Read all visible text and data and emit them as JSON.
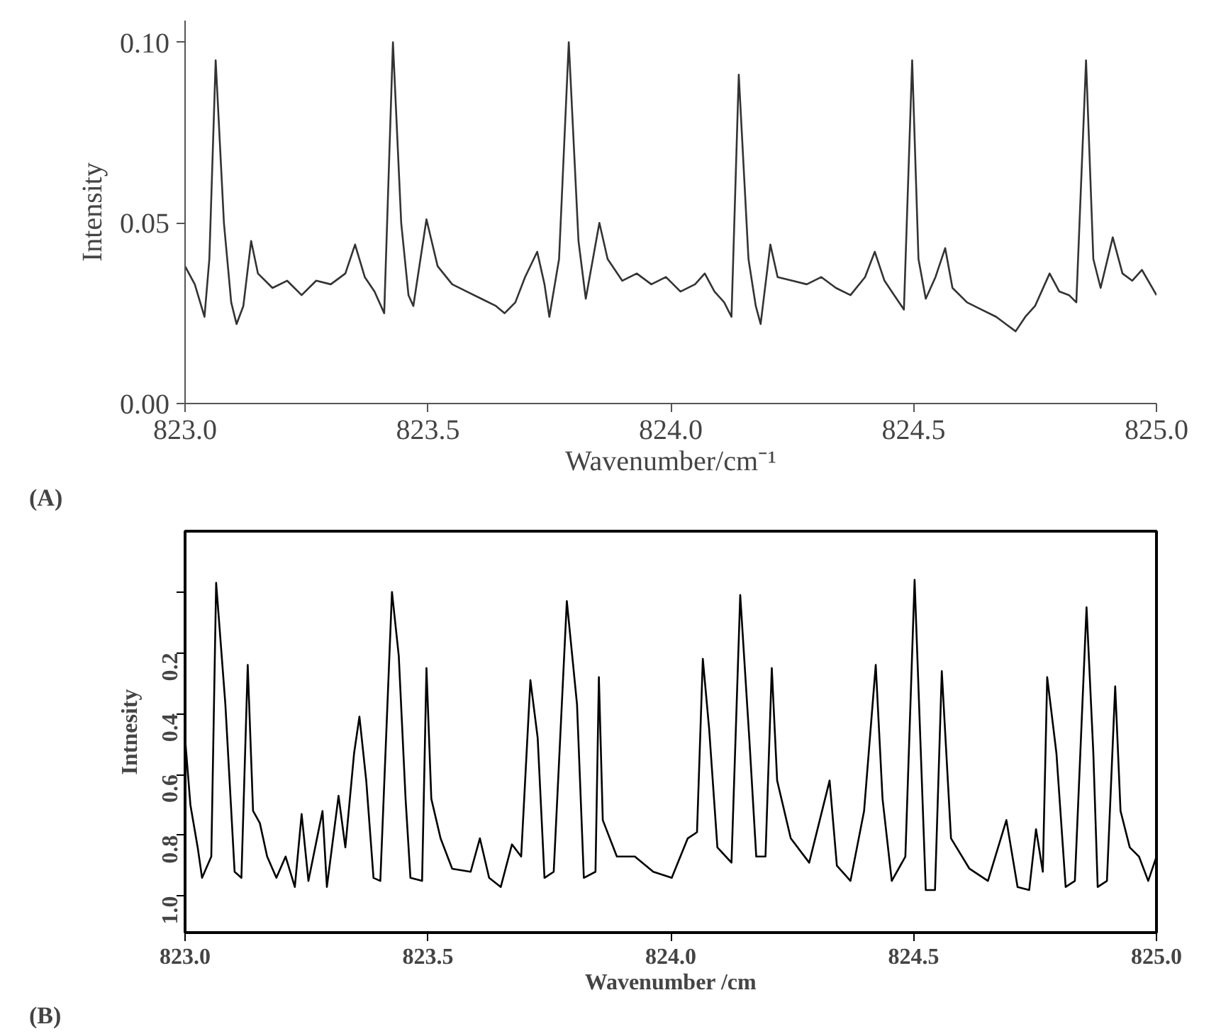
{
  "chart_data": [
    {
      "type": "line",
      "xlabel": "Wavenumber/cm⁻¹",
      "ylabel": "Intensity",
      "annotations": [
        "(A)"
      ],
      "xlim": [
        823,
        825
      ],
      "ylim": [
        0,
        0.106
      ],
      "xticks": [
        {
          "value": 823,
          "label": "823.0"
        },
        {
          "value": 823.5,
          "label": "823.5"
        },
        {
          "value": 824,
          "label": "824.0"
        },
        {
          "value": 824.5,
          "label": "824.5"
        },
        {
          "value": 825,
          "label": "825.0"
        }
      ],
      "yticks": [
        {
          "value": 0,
          "label": "0.00"
        },
        {
          "value": 0.05,
          "label": "0.05"
        },
        {
          "value": 0.1,
          "label": "0.10"
        }
      ],
      "x": [
        823.0,
        823.02,
        823.04,
        823.05,
        823.063,
        823.08,
        823.095,
        823.106,
        823.12,
        823.136,
        823.15,
        823.18,
        823.21,
        823.24,
        823.27,
        823.3,
        823.33,
        823.35,
        823.37,
        823.39,
        823.41,
        823.428,
        823.445,
        823.46,
        823.47,
        823.497,
        823.52,
        823.55,
        823.58,
        823.61,
        823.64,
        823.658,
        823.68,
        823.7,
        823.725,
        823.74,
        823.75,
        823.77,
        823.79,
        823.81,
        823.825,
        823.853,
        823.87,
        823.9,
        823.93,
        823.96,
        823.99,
        824.02,
        824.05,
        824.07,
        824.09,
        824.11,
        824.125,
        824.14,
        824.16,
        824.175,
        824.185,
        824.205,
        824.22,
        824.25,
        824.28,
        824.31,
        824.34,
        824.37,
        824.4,
        824.42,
        824.44,
        824.46,
        824.48,
        824.497,
        824.51,
        824.525,
        824.545,
        824.565,
        824.58,
        824.61,
        824.64,
        824.67,
        824.69,
        824.71,
        824.73,
        824.75,
        824.78,
        824.8,
        824.82,
        824.835,
        824.855,
        824.87,
        824.885,
        824.91,
        824.93,
        824.95,
        824.97,
        825.0
      ],
      "series": [
        {
          "color": "#333333",
          "values": [
            0.038,
            0.033,
            0.024,
            0.04,
            0.095,
            0.05,
            0.028,
            0.022,
            0.027,
            0.045,
            0.036,
            0.032,
            0.034,
            0.03,
            0.034,
            0.033,
            0.036,
            0.044,
            0.035,
            0.031,
            0.025,
            0.1,
            0.05,
            0.03,
            0.027,
            0.051,
            0.038,
            0.033,
            0.031,
            0.029,
            0.027,
            0.025,
            0.028,
            0.035,
            0.042,
            0.033,
            0.024,
            0.04,
            0.1,
            0.045,
            0.029,
            0.05,
            0.04,
            0.034,
            0.036,
            0.033,
            0.035,
            0.031,
            0.033,
            0.036,
            0.031,
            0.028,
            0.024,
            0.091,
            0.04,
            0.027,
            0.022,
            0.044,
            0.035,
            0.034,
            0.033,
            0.035,
            0.032,
            0.03,
            0.035,
            0.042,
            0.034,
            0.03,
            0.026,
            0.095,
            0.04,
            0.029,
            0.035,
            0.043,
            0.032,
            0.028,
            0.026,
            0.024,
            0.022,
            0.02,
            0.024,
            0.027,
            0.036,
            0.031,
            0.03,
            0.028,
            0.095,
            0.04,
            0.032,
            0.046,
            0.036,
            0.034,
            0.037,
            0.03
          ]
        }
      ]
    },
    {
      "type": "line",
      "xlabel": "Wavenumber /cm",
      "ylabel": "Intnesity",
      "annotations": [
        "(B)"
      ],
      "xlim": [
        823,
        825
      ],
      "ylim": [
        1.12,
        -0.2
      ],
      "xticks": [
        {
          "value": 823,
          "label": "823.0"
        },
        {
          "value": 823.5,
          "label": "823.5"
        },
        {
          "value": 824,
          "label": "824.0"
        },
        {
          "value": 824.5,
          "label": "824.5"
        },
        {
          "value": 825,
          "label": "825.0"
        }
      ],
      "yticks": [
        {
          "value": 0,
          "label": null
        },
        {
          "value": 0.2,
          "label": "0.2"
        },
        {
          "value": 0.4,
          "label": "0.4"
        },
        {
          "value": 0.6,
          "label": "0.6"
        },
        {
          "value": 0.8,
          "label": "0.8"
        },
        {
          "value": 1,
          "label": "1.0"
        }
      ],
      "x": [
        823.0,
        823.011,
        823.026,
        823.035,
        823.054,
        823.064,
        823.083,
        823.102,
        823.116,
        823.129,
        823.14,
        823.154,
        823.169,
        823.188,
        823.207,
        823.226,
        823.24,
        823.254,
        823.283,
        823.292,
        823.316,
        823.33,
        823.348,
        823.359,
        823.373,
        823.388,
        823.402,
        823.426,
        823.44,
        823.454,
        823.464,
        823.488,
        823.497,
        823.507,
        823.526,
        823.55,
        823.588,
        823.607,
        823.626,
        823.65,
        823.673,
        823.692,
        823.711,
        823.726,
        823.74,
        823.759,
        823.786,
        823.807,
        823.821,
        823.845,
        823.852,
        823.86,
        823.889,
        823.926,
        823.964,
        824.002,
        824.035,
        824.054,
        824.066,
        824.079,
        824.096,
        824.125,
        824.143,
        824.162,
        824.176,
        824.195,
        824.208,
        824.219,
        824.247,
        824.285,
        824.327,
        824.342,
        824.37,
        824.398,
        824.422,
        824.436,
        824.455,
        824.483,
        824.502,
        824.525,
        824.544,
        824.558,
        824.577,
        824.615,
        824.653,
        824.691,
        824.714,
        824.738,
        824.752,
        824.766,
        824.775,
        824.794,
        824.813,
        824.832,
        824.856,
        824.87,
        824.879,
        824.898,
        824.915,
        824.926,
        824.945,
        824.964,
        824.983,
        825.0
      ],
      "series": [
        {
          "color": "#000000",
          "values": [
            0.48,
            0.7,
            0.84,
            0.94,
            0.87,
            -0.03,
            0.37,
            0.92,
            0.94,
            0.24,
            0.72,
            0.76,
            0.87,
            0.94,
            0.87,
            0.97,
            0.73,
            0.95,
            0.72,
            0.97,
            0.67,
            0.84,
            0.53,
            0.41,
            0.62,
            0.94,
            0.95,
            0.0,
            0.21,
            0.68,
            0.94,
            0.95,
            0.25,
            0.68,
            0.81,
            0.91,
            0.92,
            0.81,
            0.94,
            0.97,
            0.83,
            0.87,
            0.29,
            0.48,
            0.94,
            0.92,
            0.03,
            0.37,
            0.94,
            0.92,
            0.28,
            0.75,
            0.87,
            0.87,
            0.92,
            0.94,
            0.81,
            0.79,
            0.22,
            0.45,
            0.84,
            0.89,
            0.01,
            0.49,
            0.87,
            0.87,
            0.25,
            0.62,
            0.81,
            0.89,
            0.62,
            0.9,
            0.95,
            0.72,
            0.24,
            0.68,
            0.95,
            0.87,
            -0.04,
            0.98,
            0.98,
            0.26,
            0.81,
            0.91,
            0.95,
            0.75,
            0.97,
            0.98,
            0.78,
            0.92,
            0.28,
            0.53,
            0.97,
            0.95,
            0.05,
            0.53,
            0.97,
            0.95,
            0.31,
            0.72,
            0.84,
            0.87,
            0.95,
            0.87
          ]
        }
      ]
    }
  ]
}
